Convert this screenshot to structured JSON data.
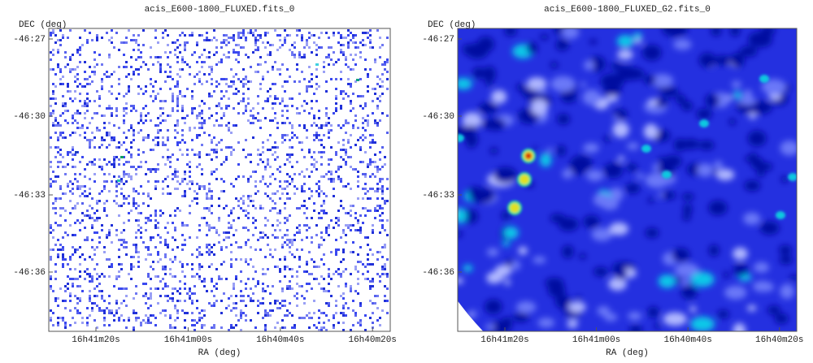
{
  "panels": [
    {
      "title": "acis_E600-1800_FLUXED.fits_0",
      "y_label": "DEC (deg)",
      "x_label": "RA (deg)",
      "yticks": [
        "-46:27",
        "-46:30",
        "-46:33",
        "-46:36"
      ],
      "xticks": [
        "16h41m20s",
        "16h41m00s",
        "16h40m40s",
        "16h40m20s"
      ]
    },
    {
      "title": "acis_E600-1800_FLUXED_G2.fits_0",
      "y_label": "DEC (deg)",
      "x_label": "RA (deg)",
      "yticks": [
        "-46:27",
        "-46:30",
        "-46:33",
        "-46:36"
      ],
      "xticks": [
        "16h41m20s",
        "16h41m00s",
        "16h40m40s",
        "16h40m20s"
      ]
    }
  ]
}
